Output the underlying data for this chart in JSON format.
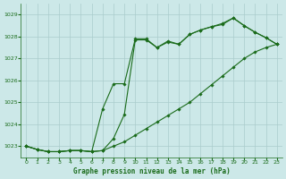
{
  "bg_color": "#cce8e8",
  "grid_color": "#aacccc",
  "line_color": "#1a6b1a",
  "title": "Graphe pression niveau de la mer (hPa)",
  "xlim": [
    -0.5,
    23.5
  ],
  "ylim": [
    1022.5,
    1029.5
  ],
  "yticks": [
    1023,
    1024,
    1025,
    1026,
    1027,
    1028,
    1029
  ],
  "xticks": [
    0,
    1,
    2,
    3,
    4,
    5,
    6,
    7,
    8,
    9,
    10,
    11,
    12,
    13,
    14,
    15,
    16,
    17,
    18,
    19,
    20,
    21,
    22,
    23
  ],
  "series": [
    {
      "x": [
        0,
        1,
        2,
        3,
        4,
        5,
        6,
        7,
        8,
        9,
        10,
        11,
        12,
        13,
        14,
        15,
        16,
        17,
        18,
        19,
        20,
        21,
        22,
        23
      ],
      "y": [
        1023.0,
        1022.85,
        1022.75,
        1022.75,
        1022.8,
        1022.8,
        1022.75,
        1022.8,
        1023.0,
        1023.2,
        1023.5,
        1023.8,
        1024.1,
        1024.4,
        1024.7,
        1025.0,
        1025.4,
        1025.8,
        1026.2,
        1026.6,
        1027.0,
        1027.3,
        1027.5,
        1027.65
      ]
    },
    {
      "x": [
        0,
        1,
        2,
        3,
        4,
        5,
        6,
        7,
        8,
        9,
        10,
        11,
        12,
        13,
        14,
        15,
        16,
        17,
        18,
        19,
        20,
        21,
        22,
        23
      ],
      "y": [
        1023.0,
        1022.85,
        1022.75,
        1022.75,
        1022.8,
        1022.8,
        1022.75,
        1024.7,
        1025.85,
        1025.85,
        1027.9,
        1027.9,
        1027.5,
        1027.75,
        1027.65,
        1028.1,
        1028.3,
        1028.45,
        1028.55,
        1028.85,
        1028.5,
        1028.2,
        1027.95,
        1027.65
      ]
    },
    {
      "x": [
        0,
        1,
        2,
        3,
        4,
        5,
        6,
        7,
        8,
        9,
        10,
        11,
        12,
        13,
        14,
        15,
        16,
        17,
        18,
        19,
        20,
        21,
        22,
        23
      ],
      "y": [
        1023.0,
        1022.85,
        1022.75,
        1022.75,
        1022.8,
        1022.8,
        1022.75,
        1022.8,
        1023.35,
        1024.45,
        1027.85,
        1027.85,
        1027.5,
        1027.8,
        1027.65,
        1028.1,
        1028.3,
        1028.45,
        1028.6,
        1028.85,
        1028.5,
        1028.2,
        1027.95,
        1027.65
      ]
    }
  ]
}
